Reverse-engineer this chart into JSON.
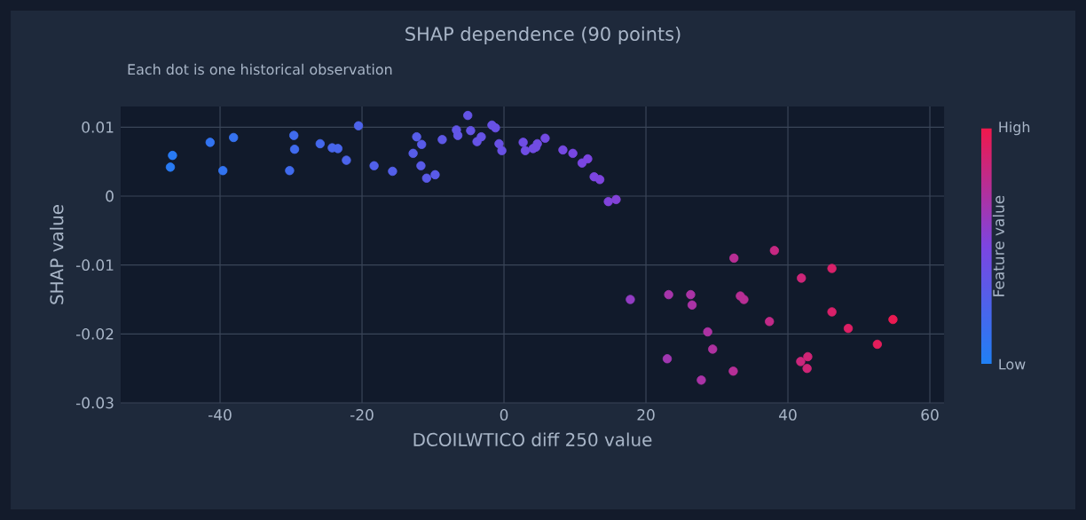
{
  "chart_data": {
    "type": "scatter",
    "title": "SHAP dependence (90 points)",
    "subtitle": "Each dot is one historical observation",
    "xlabel": "DCOILWTICO diff 250 value",
    "ylabel": "SHAP value",
    "clabel": "Feature value",
    "x": [
      -46.7,
      -47,
      -41.4,
      -39.6,
      -38.1,
      -30.2,
      -29.6,
      -29.5,
      -25.9,
      -24.2,
      -23.4,
      -22.2,
      -20.5,
      -18.3,
      -15.7,
      -12.8,
      -12.3,
      -11.6,
      -11.7,
      -10.9,
      -9.7,
      -8.7,
      -6.7,
      -6.5,
      -5.1,
      -4.7,
      -3.8,
      -3.2,
      -1.7,
      -1.2,
      -0.7,
      -0.3,
      2.7,
      3.0,
      4.1,
      4.7,
      5.8,
      8.3,
      4.5,
      9.7,
      11.0,
      11.8,
      12.7,
      13.5,
      14.7,
      15.8,
      17.8,
      23.2,
      23.0,
      26.3,
      26.5,
      27.8,
      28.7,
      29.4,
      32.3,
      32.4,
      33.3,
      33.8,
      37.4,
      38.1,
      41.9,
      41.8,
      42.8,
      42.7,
      46.2,
      46.2,
      48.5,
      52.6,
      54.8
    ],
    "values": [
      0.0059,
      0.0042,
      0.0078,
      0.0037,
      0.0085,
      0.0037,
      0.0088,
      0.0068,
      0.0076,
      0.007,
      0.0069,
      0.0052,
      0.0102,
      0.0044,
      0.0036,
      0.0062,
      0.0086,
      0.0075,
      0.0044,
      0.0026,
      0.0031,
      0.0082,
      0.0096,
      0.0088,
      0.0117,
      0.0095,
      0.0079,
      0.0086,
      0.0103,
      0.0099,
      0.0076,
      0.0066,
      0.0078,
      0.0066,
      0.0069,
      0.0076,
      0.0084,
      0.0067,
      0.0071,
      0.0062,
      0.0048,
      0.0054,
      0.0028,
      0.0024,
      -0.0008,
      -0.0005,
      -0.015,
      -0.0143,
      -0.0236,
      -0.0143,
      -0.0158,
      -0.0267,
      -0.0197,
      -0.0222,
      -0.0254,
      -0.009,
      -0.0145,
      -0.015,
      -0.0182,
      -0.0079,
      -0.0119,
      -0.024,
      -0.0233,
      -0.025,
      -0.0105,
      -0.0168,
      -0.0192,
      -0.0215,
      -0.0179
    ],
    "cvalues": [
      0.05,
      0.05,
      0.1,
      0.1,
      0.12,
      0.18,
      0.18,
      0.18,
      0.2,
      0.22,
      0.22,
      0.24,
      0.25,
      0.27,
      0.28,
      0.3,
      0.3,
      0.31,
      0.31,
      0.32,
      0.32,
      0.34,
      0.36,
      0.36,
      0.37,
      0.37,
      0.38,
      0.38,
      0.39,
      0.4,
      0.4,
      0.4,
      0.43,
      0.43,
      0.44,
      0.44,
      0.45,
      0.47,
      0.44,
      0.48,
      0.49,
      0.5,
      0.5,
      0.51,
      0.52,
      0.53,
      0.6,
      0.68,
      0.66,
      0.7,
      0.7,
      0.7,
      0.71,
      0.72,
      0.75,
      0.76,
      0.76,
      0.76,
      0.8,
      0.82,
      0.85,
      0.84,
      0.86,
      0.86,
      0.9,
      0.9,
      0.92,
      0.95,
      0.98
    ],
    "xlim": [
      -54,
      62
    ],
    "ylim": [
      -0.03,
      0.013
    ],
    "xticks": [
      -40,
      -20,
      0,
      20,
      40,
      60
    ],
    "yticks": [
      -0.03,
      -0.02,
      -0.01,
      0,
      0.01
    ],
    "clim": [
      0,
      1
    ],
    "cticks": [
      {
        "value": 0,
        "label": "Low"
      },
      {
        "value": 1,
        "label": "High"
      }
    ],
    "grid": true,
    "marker": "circle"
  }
}
